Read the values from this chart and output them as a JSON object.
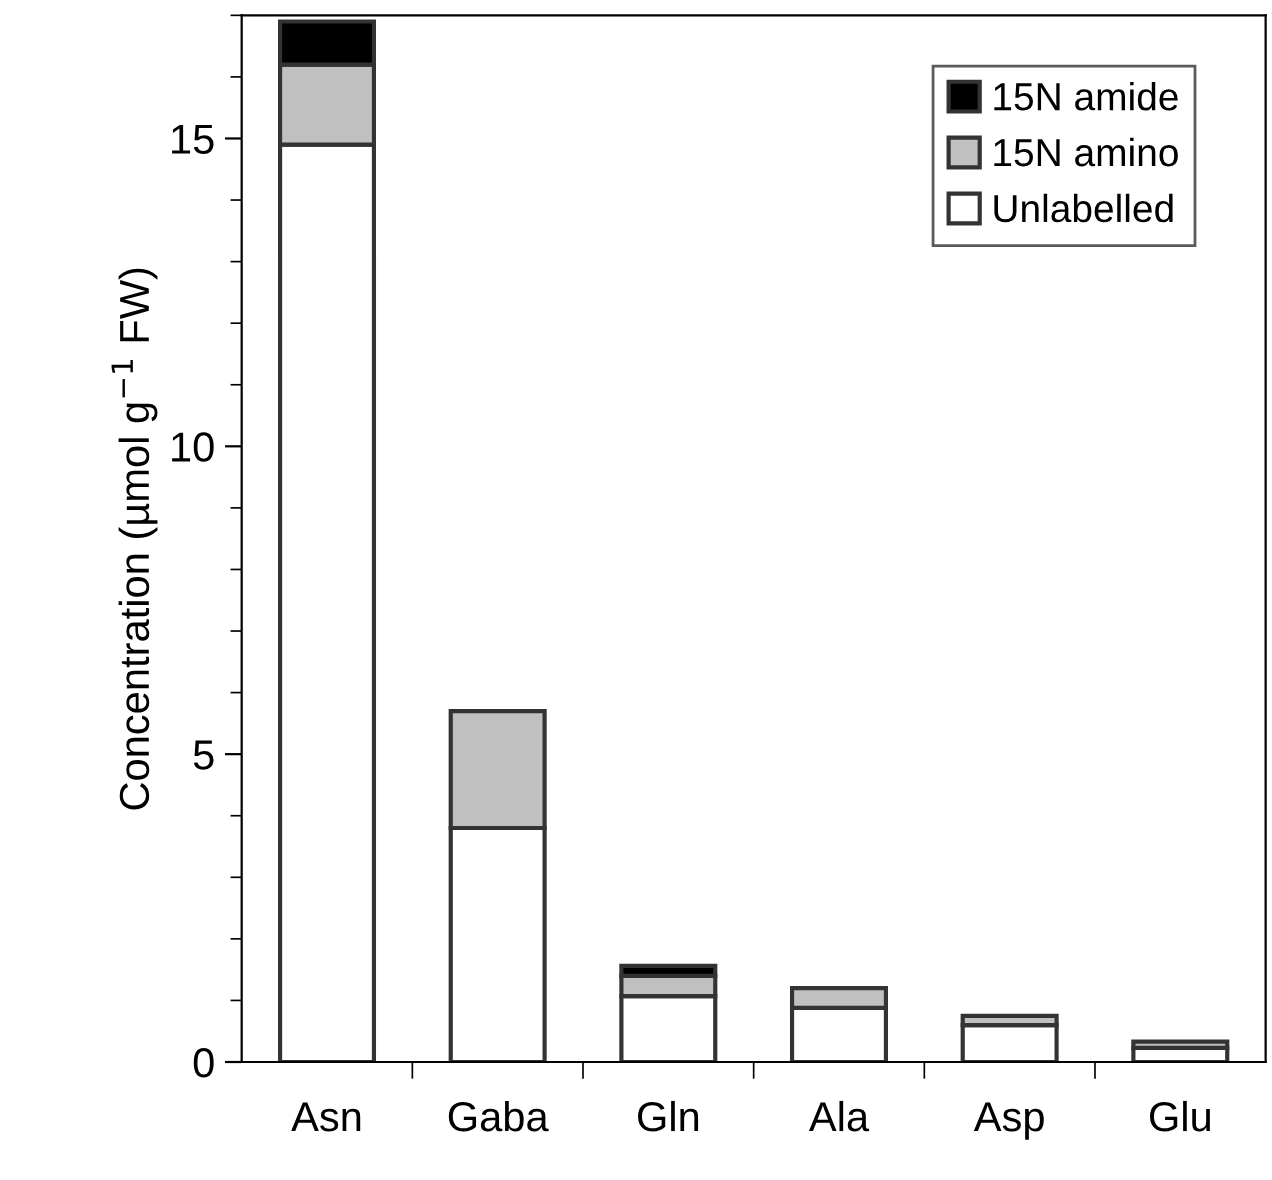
{
  "chart_data": {
    "type": "bar",
    "stacked": true,
    "ylabel": "Concentration (µmol g$^{−1}$ FW)",
    "categories": [
      "Asn",
      "Gaba",
      "Gln",
      "Ala",
      "Asp",
      "Glu"
    ],
    "series": [
      {
        "name": "Unlabelled",
        "color": "#ffffff",
        "values": [
          14.9,
          3.8,
          1.07,
          0.88,
          0.6,
          0.23
        ]
      },
      {
        "name": "15N amino",
        "color": "#c0c0c0",
        "values": [
          1.3,
          1.9,
          0.33,
          0.32,
          0.15,
          0.1
        ]
      },
      {
        "name": "15N amide",
        "color": "#000000",
        "values": [
          0.7,
          null,
          0.16,
          null,
          null,
          null
        ]
      }
    ],
    "ylim": [
      0,
      17
    ],
    "yticks": [
      0,
      5,
      10,
      15
    ],
    "legend": "top right",
    "grid": false
  }
}
